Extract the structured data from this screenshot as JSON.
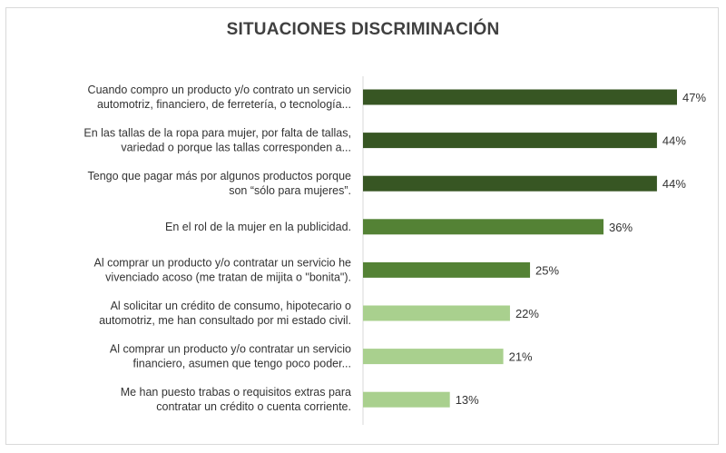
{
  "chart_data": {
    "type": "bar",
    "orientation": "horizontal",
    "title": "SITUACIONES DISCRIMINACIÓN",
    "xlabel": "",
    "ylabel": "",
    "xlim": [
      0,
      50
    ],
    "grid": false,
    "legend": "none",
    "value_suffix": "%",
    "categories": [
      [
        "Cuando compro un producto y/o contrato un servicio",
        "automotriz, financiero, de ferretería, o tecnología..."
      ],
      [
        "En las tallas de la ropa para mujer, por falta de tallas,",
        "variedad o porque las tallas corresponden a..."
      ],
      [
        "Tengo que pagar más por algunos productos porque",
        "son “sólo para mujeres”."
      ],
      [
        "En el rol de la mujer en la publicidad."
      ],
      [
        "Al comprar un producto y/o contratar un servicio he",
        "vivenciado acoso (me tratan de mijita o \"bonita\")."
      ],
      [
        "Al solicitar un crédito de consumo, hipotecario o",
        "automotriz, me han consultado por mi estado civil."
      ],
      [
        "Al comprar un producto y/o contratar un servicio",
        "financiero, asumen que tengo poco poder..."
      ],
      [
        "Me han puesto trabas o requisitos extras para",
        "contratar un crédito o cuenta corriente."
      ]
    ],
    "values": [
      47,
      44,
      44,
      36,
      25,
      22,
      21,
      13
    ],
    "value_labels": [
      "47%",
      "44%",
      "44%",
      "36%",
      "25%",
      "22%",
      "21%",
      "13%"
    ],
    "bar_colors": [
      "#375623",
      "#375623",
      "#375623",
      "#548235",
      "#548235",
      "#a9d08e",
      "#a9d08e",
      "#a9d08e"
    ],
    "axis_color": "#d9d9d9"
  }
}
